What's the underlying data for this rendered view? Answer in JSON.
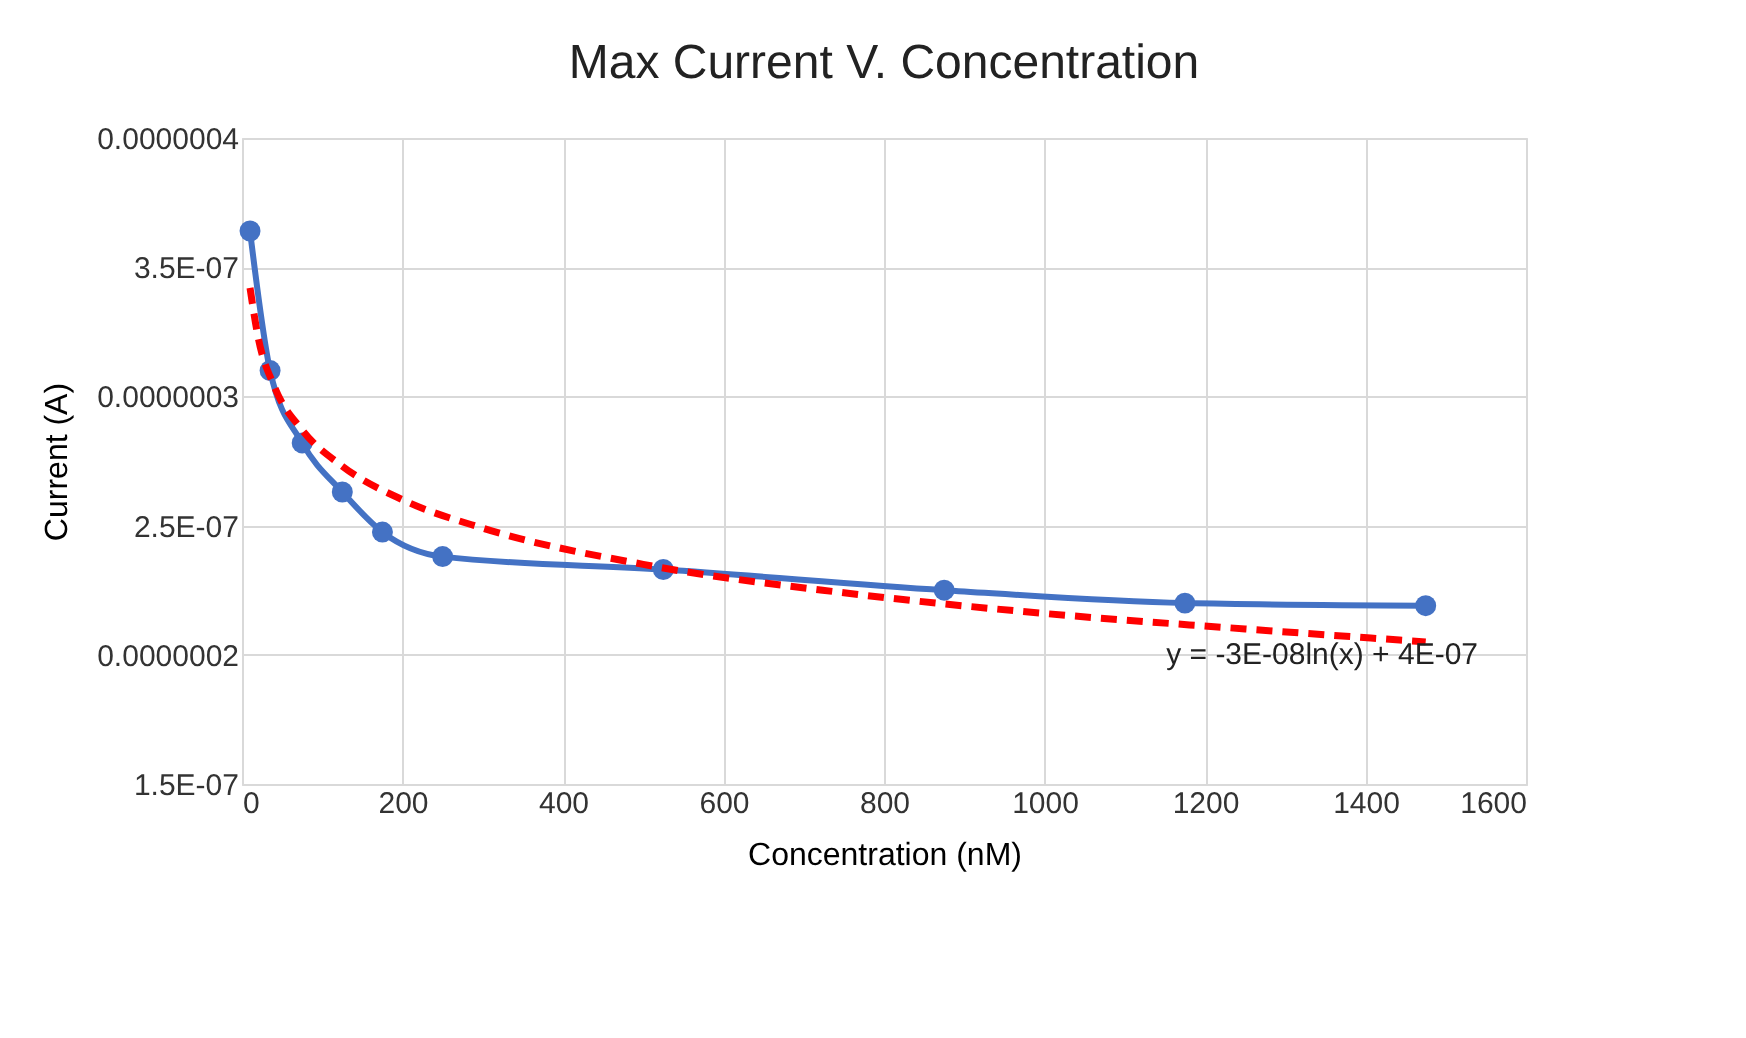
{
  "chart_data": {
    "type": "line",
    "title": "Max Current V. Concentration",
    "xlabel": "Concentration (nM)",
    "ylabel": "Current (A)",
    "xlim": [
      0,
      1600
    ],
    "xticks": [
      0,
      200,
      400,
      600,
      800,
      1000,
      1200,
      1400,
      1600
    ],
    "ylim": [
      1.5e-07,
      4e-07
    ],
    "yticks": [
      {
        "value": 1.5e-07,
        "label": "1.5E-07"
      },
      {
        "value": 2e-07,
        "label": "0.0000002"
      },
      {
        "value": 2.5e-07,
        "label": "2.5E-07"
      },
      {
        "value": 3e-07,
        "label": "0.0000003"
      },
      {
        "value": 3.5e-07,
        "label": "3.5E-07"
      },
      {
        "value": 4e-07,
        "label": "0.0000004"
      }
    ],
    "grid": true,
    "series": [
      {
        "color": "#4472c4",
        "marker": "circle",
        "line_style": "solid",
        "x": [
          10,
          35,
          75,
          125,
          175,
          250,
          525,
          875,
          1175,
          1475
        ],
        "values": [
          3.64e-07,
          3.1e-07,
          2.82e-07,
          2.63e-07,
          2.475e-07,
          2.38e-07,
          2.33e-07,
          2.25e-07,
          2.2e-07,
          2.19e-07
        ]
      },
      {
        "color": "#ff0000",
        "marker": "none",
        "line_style": "dashed",
        "x": [
          10,
          20,
          40,
          75,
          125,
          200,
          300,
          500,
          750,
          1000,
          1250,
          1475
        ],
        "values": [
          3.42e-07,
          3.23e-07,
          3.04e-07,
          2.87e-07,
          2.73e-07,
          2.6e-07,
          2.49e-07,
          2.35e-07,
          2.24e-07,
          2.16e-07,
          2.1e-07,
          2.05e-07
        ]
      }
    ],
    "annotations": [
      "y = -3E-08ln(x) + 4E-07"
    ]
  }
}
